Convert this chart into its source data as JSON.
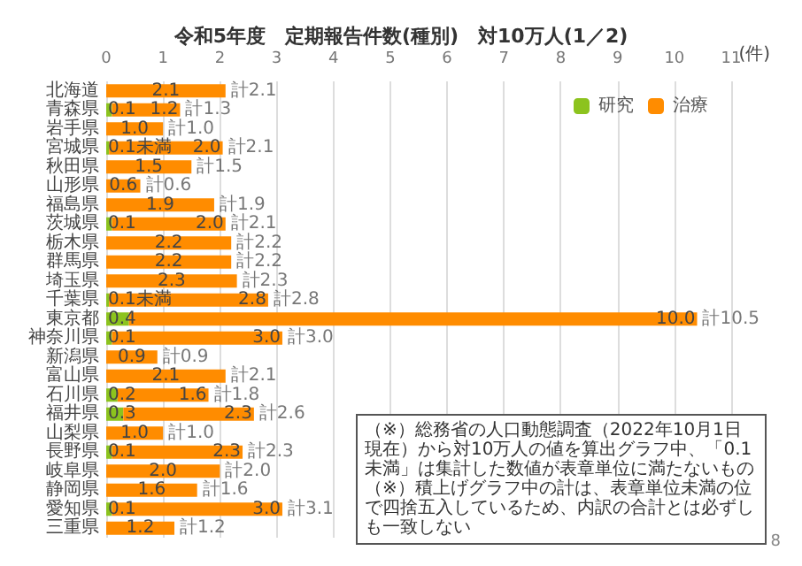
{
  "chart_data": {
    "type": "bar",
    "orientation": "horizontal",
    "stacked": true,
    "title": "令和5年度　定期報告件数(種別)　対10万人(1／2)",
    "categories": [
      "北海道",
      "青森県",
      "岩手県",
      "宮城県",
      "秋田県",
      "山形県",
      "福島県",
      "茨城県",
      "栃木県",
      "群馬県",
      "埼玉県",
      "千葉県",
      "東京都",
      "神奈川県",
      "新潟県",
      "富山県",
      "石川県",
      "福井県",
      "山梨県",
      "長野県",
      "岐阜県",
      "静岡県",
      "愛知県",
      "三重県"
    ],
    "series": [
      {
        "name": "研究",
        "color": "#8cc31e",
        "values": [
          null,
          0.1,
          null,
          0.05,
          null,
          null,
          null,
          0.1,
          null,
          null,
          null,
          0.05,
          0.4,
          0.1,
          null,
          null,
          0.2,
          0.3,
          null,
          0.1,
          null,
          null,
          0.1,
          null
        ],
        "value_labels": [
          null,
          "0.1",
          null,
          "0.1未満",
          null,
          null,
          null,
          "0.1",
          null,
          null,
          null,
          "0.1未満",
          "0.4",
          "0.1",
          null,
          null,
          "0.2",
          "0.3",
          null,
          "0.1",
          null,
          null,
          "0.1",
          null
        ]
      },
      {
        "name": "治療",
        "color": "#ff8c00",
        "values": [
          2.1,
          1.2,
          1.0,
          2.0,
          1.5,
          0.6,
          1.9,
          2.0,
          2.2,
          2.2,
          2.3,
          2.8,
          10.0,
          3.0,
          0.9,
          2.1,
          1.6,
          2.3,
          1.0,
          2.3,
          2.0,
          1.6,
          3.0,
          1.2
        ],
        "value_labels": [
          "2.1",
          "1.2",
          "1.0",
          "2.0",
          "1.5",
          "0.6",
          "1.9",
          "2.0",
          "2.2",
          "2.2",
          "2.3",
          "2.8",
          "10.0",
          "3.0",
          "0.9",
          "2.1",
          "1.6",
          "2.3",
          "1.0",
          "2.3",
          "2.0",
          "1.6",
          "3.0",
          "1.2"
        ]
      }
    ],
    "totals": [
      "計2.1",
      "計1.3",
      "計1.0",
      "計2.1",
      "計1.5",
      "計0.6",
      "計1.9",
      "計2.1",
      "計2.2",
      "計2.2",
      "計2.3",
      "計2.8",
      "計10.5",
      "計3.0",
      "計0.9",
      "計2.1",
      "計1.8",
      "計2.6",
      "計1.0",
      "計2.3",
      "計2.0",
      "計1.6",
      "計3.1",
      "計1.2"
    ],
    "xlim": [
      0,
      11
    ],
    "xticks": [
      0,
      1,
      2,
      3,
      4,
      5,
      6,
      7,
      8,
      9,
      10,
      11
    ],
    "grid": "x",
    "legend": "top right",
    "annotations": [
      "(件)",
      "（※）総務省の人口動態調査（2022年10月1日現在）から対10万人の値を算出グラフ中、「0.1未満」は集計した数値が表章単位に満たないもの",
      "（※）積上げグラフ中の計は、表章単位未満の位で四捨五入しているため、内訳の合計とは必ずしも一致しない",
      "8"
    ]
  }
}
